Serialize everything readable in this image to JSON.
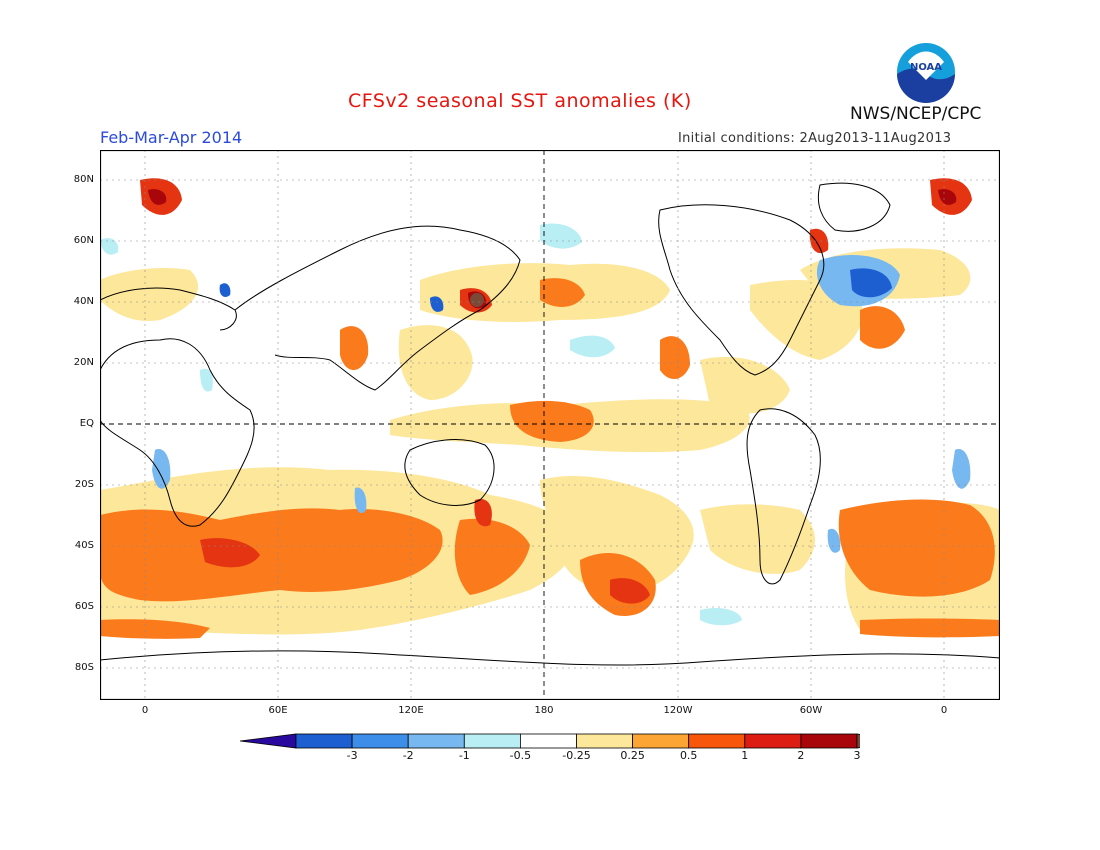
{
  "title": "CFSv2 seasonal SST anomalies (K)",
  "period": "Feb-Mar-Apr 2014",
  "initial_conditions": "Initial conditions: 2Aug2013-11Aug2013",
  "agency": "NWS/NCEP/CPC",
  "logo_text": "NOAA",
  "map": {
    "lat_labels": [
      "80N",
      "60N",
      "40N",
      "20N",
      "EQ",
      "20S",
      "40S",
      "60S",
      "80S"
    ],
    "lon_labels": [
      "0",
      "60E",
      "120E",
      "180",
      "120W",
      "60W",
      "0"
    ]
  },
  "colorbar": {
    "labels": [
      "-3",
      "-2",
      "-1",
      "-0.5",
      "-0.25",
      "0.25",
      "0.5",
      "1",
      "2",
      "3"
    ],
    "colors": [
      "#2a0a9e",
      "#1d5fd0",
      "#3c8ee8",
      "#78b8f0",
      "#b8eef4",
      "#ffffff",
      "#fde79a",
      "#fca534",
      "#f8560b",
      "#dd1c12",
      "#a8060a",
      "#7a4a36"
    ]
  },
  "anomaly_colors": {
    "light_warm": "#fde79a",
    "warm": "#fb7a1c",
    "hot": "#e43412",
    "very_hot": "#a8060a",
    "light_cool": "#b8eef4",
    "cool": "#78b8f0",
    "cold": "#1d5fd0"
  }
}
